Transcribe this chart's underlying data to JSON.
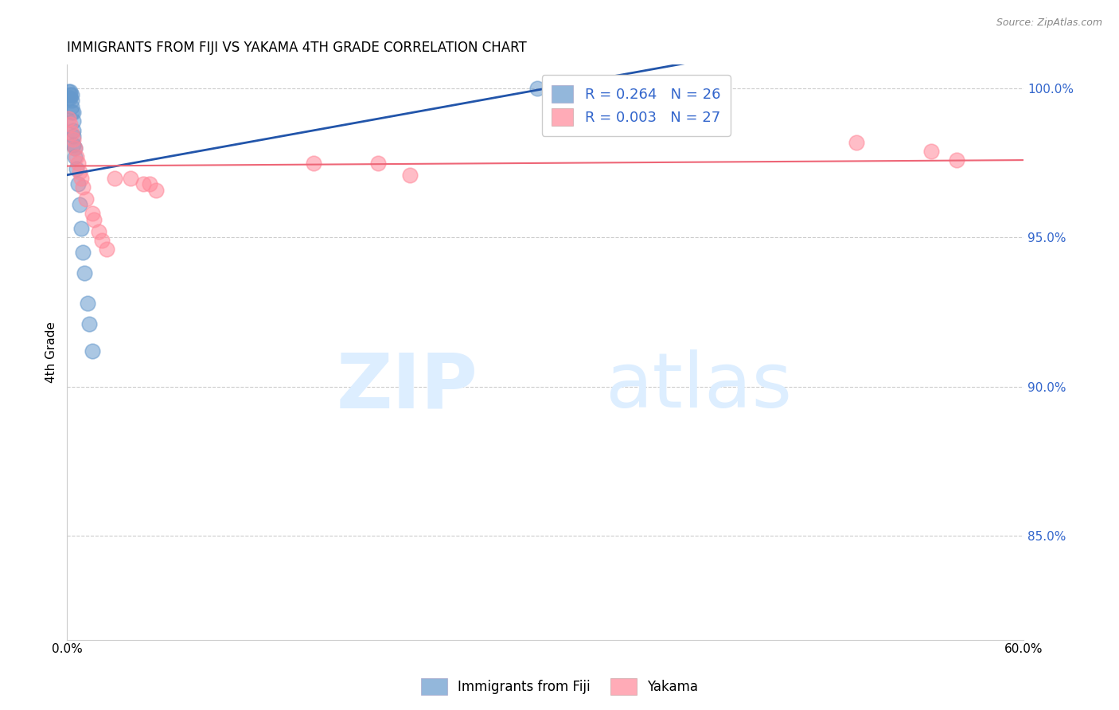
{
  "title": "IMMIGRANTS FROM FIJI VS YAKAMA 4TH GRADE CORRELATION CHART",
  "source": "Source: ZipAtlas.com",
  "ylabel": "4th Grade",
  "ytick_vals": [
    1.0,
    0.95,
    0.9,
    0.85
  ],
  "ytick_labels": [
    "100.0%",
    "95.0%",
    "90.0%",
    "85.0%"
  ],
  "xlim": [
    0.0,
    0.6
  ],
  "ylim": [
    0.815,
    1.008
  ],
  "blue_color": "#6699CC",
  "pink_color": "#FF8899",
  "blue_line_color": "#2255AA",
  "pink_line_color": "#EE6677",
  "fiji_x": [
    0.001,
    0.001,
    0.002,
    0.002,
    0.002,
    0.003,
    0.003,
    0.003,
    0.003,
    0.004,
    0.004,
    0.004,
    0.004,
    0.004,
    0.005,
    0.005,
    0.006,
    0.007,
    0.008,
    0.009,
    0.01,
    0.011,
    0.013,
    0.014,
    0.016,
    0.295
  ],
  "fiji_y": [
    0.999,
    0.997,
    0.999,
    0.998,
    0.997,
    0.998,
    0.996,
    0.994,
    0.992,
    0.992,
    0.989,
    0.986,
    0.984,
    0.981,
    0.98,
    0.977,
    0.973,
    0.968,
    0.961,
    0.953,
    0.945,
    0.938,
    0.928,
    0.921,
    0.912,
    1.0
  ],
  "yakama_x": [
    0.001,
    0.002,
    0.003,
    0.004,
    0.005,
    0.006,
    0.007,
    0.008,
    0.009,
    0.01,
    0.012,
    0.016,
    0.017,
    0.02,
    0.022,
    0.025,
    0.03,
    0.04,
    0.048,
    0.052,
    0.056,
    0.155,
    0.195,
    0.215,
    0.495,
    0.542,
    0.558
  ],
  "yakama_y": [
    0.99,
    0.988,
    0.985,
    0.983,
    0.98,
    0.977,
    0.975,
    0.972,
    0.97,
    0.967,
    0.963,
    0.958,
    0.956,
    0.952,
    0.949,
    0.946,
    0.97,
    0.97,
    0.968,
    0.968,
    0.966,
    0.975,
    0.975,
    0.971,
    0.982,
    0.979,
    0.976
  ],
  "legend_text1": "R = 0.264   N = 26",
  "legend_text2": "R = 0.003   N = 27"
}
